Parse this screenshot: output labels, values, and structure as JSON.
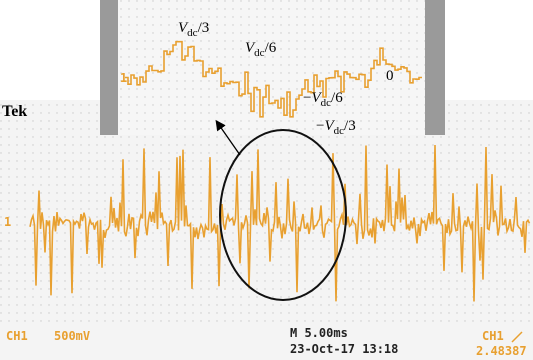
{
  "brand": "Tek",
  "channel_marker": "1",
  "annotations": [
    {
      "symbol": "V",
      "sub": "dc",
      "suffix": "/3"
    },
    {
      "symbol": "V",
      "sub": "dc",
      "suffix": "/6"
    },
    {
      "text": "0"
    },
    {
      "prefix": "−",
      "symbol": "V",
      "sub": "dc",
      "suffix": "/6"
    },
    {
      "prefix": "−",
      "symbol": "V",
      "sub": "dc",
      "suffix": "/3"
    }
  ],
  "status": {
    "channel": "CH1",
    "scale": "500mV",
    "timebase": "M 5.00ms",
    "datetime": "23-Oct-17 13:18",
    "trigger_channel": "CH1",
    "trigger_level": "2.48387"
  }
}
